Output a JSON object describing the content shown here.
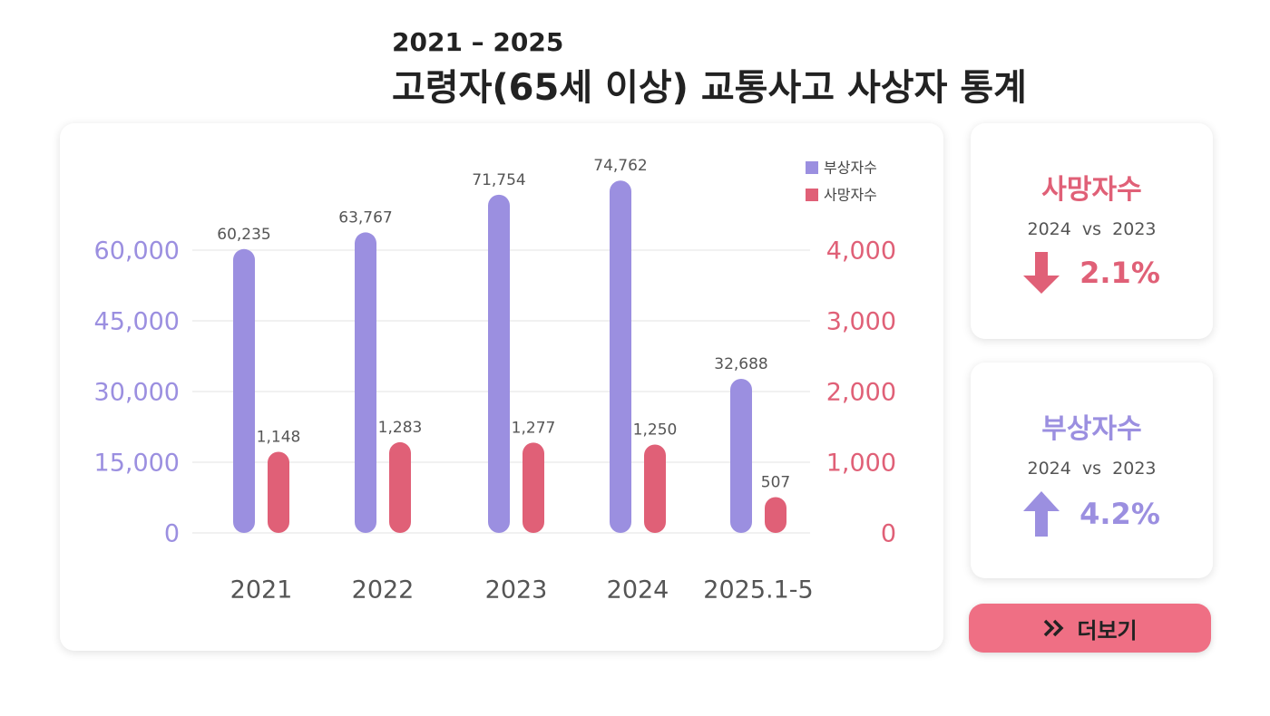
{
  "header": {
    "subtitle": "2021 – 2025",
    "title": "고령자(65세 이상) 교통사고 사상자 통계"
  },
  "chart_data": {
    "type": "bar",
    "categories": [
      "2021",
      "2022",
      "2023",
      "2024",
      "2025.1-5"
    ],
    "series": [
      {
        "name": "부상자수",
        "color": "#9b8fe0",
        "values": [
          60235,
          63767,
          71754,
          74762,
          32688
        ],
        "value_labels": [
          "60,235",
          "63,767",
          "71,754",
          "74,762",
          "32,688"
        ]
      },
      {
        "name": "사망자수",
        "color": "#e06077",
        "axis": "y2",
        "values": [
          1148,
          1283,
          1277,
          1250,
          507
        ],
        "value_labels": [
          "1,148",
          "1,283",
          "1,277",
          "1,250",
          "507"
        ]
      }
    ],
    "ylim": [
      0,
      60000
    ],
    "yticks": [
      0,
      {
        "value": 15000,
        "label": "15,000"
      },
      {
        "value": 30000,
        "label": "30,000"
      },
      {
        "value": 45000,
        "label": "45,000"
      },
      {
        "value": 60000,
        "label": "60,000"
      }
    ],
    "y2lim": [
      0,
      4000
    ],
    "y2ticks": [
      0,
      {
        "value": 1000,
        "label": "1,000"
      },
      {
        "value": 2000,
        "label": "2,000"
      },
      {
        "value": 3000,
        "label": "3,000"
      },
      {
        "value": 4000,
        "label": "4,000"
      }
    ],
    "grid": true,
    "legend": "upper right"
  },
  "cards": [
    {
      "title": "사망자수",
      "compare": "2024  vs  2023",
      "change": "2.1%"
    },
    {
      "title": "부상자수",
      "compare": "2024  vs  2023",
      "change": "4.2%"
    }
  ],
  "button": "더보기"
}
